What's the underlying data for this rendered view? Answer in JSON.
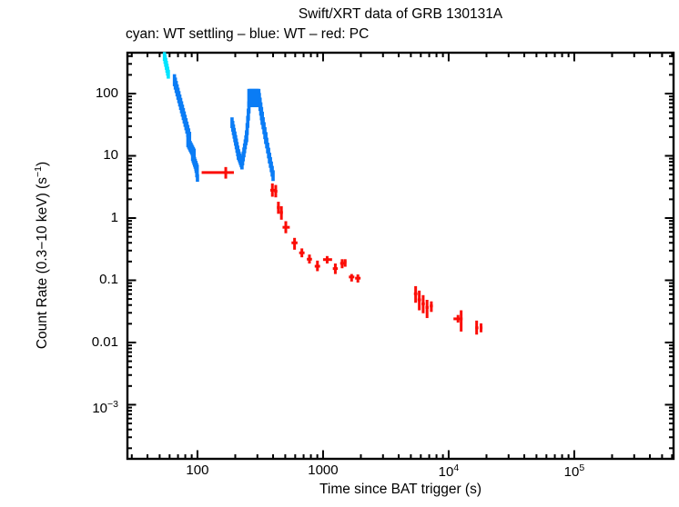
{
  "colors": {
    "wt_settling": "#00e5ff",
    "wt": "#0a7cf5",
    "pc": "#fb0d06",
    "frame": "#000000",
    "background": "#ffffff"
  },
  "chart_data": {
    "type": "scatter",
    "title": "Swift/XRT data of GRB 130131A",
    "subtitle": "cyan: WT settling – blue: WT – red: PC",
    "xlabel": "Time since BAT trigger (s)",
    "ylabel": "Count Rate (0.3−10 keV) (s^{−1})",
    "xscale": "log",
    "yscale": "log",
    "xlim": [
      27.7,
      617000
    ],
    "ylim": [
      0.000135,
      454
    ],
    "grid": false,
    "legend_position": "subtitle-text",
    "x_major_ticks": [
      {
        "v": 100,
        "label": "100"
      },
      {
        "v": 1000,
        "label": "1000"
      },
      {
        "v": 10000,
        "label": "10^{4}"
      },
      {
        "v": 100000,
        "label": "10^{5}"
      }
    ],
    "y_major_ticks": [
      {
        "v": 100,
        "label": "100"
      },
      {
        "v": 10,
        "label": "10"
      },
      {
        "v": 1,
        "label": "1"
      },
      {
        "v": 0.1,
        "label": "0.1"
      },
      {
        "v": 0.01,
        "label": "0.01"
      },
      {
        "v": 0.001,
        "label": "10^{−3}"
      }
    ],
    "series": [
      {
        "name": "WT settling",
        "color_key": "wt_settling",
        "style": "dense-errorbar-trail",
        "segments": [
          [
            54.6,
            395,
            58.6,
            205,
            7,
            1.18
          ]
        ]
      },
      {
        "name": "WT",
        "color_key": "wt",
        "style": "dense-errorbar-trail",
        "segments": [
          [
            65.6,
            164,
            86.5,
            19.5,
            18,
            1.25
          ],
          [
            84,
            16.8,
            94,
            10.7,
            9,
            1.22
          ],
          [
            91.5,
            9.9,
            99.5,
            6.0,
            8,
            1.2
          ],
          [
            97.7,
            6.1,
            100,
            4.4,
            3,
            1.15
          ],
          [
            188.5,
            34,
            212,
            10.5,
            10,
            1.22
          ],
          [
            212,
            10.5,
            226,
            7.26,
            6,
            1.2
          ],
          [
            226,
            7.26,
            246,
            20.6,
            8,
            1.2
          ],
          [
            246,
            20.6,
            257,
            60,
            5,
            1.25
          ],
          [
            257,
            85,
            308,
            85,
            10,
            1.4
          ],
          [
            311,
            80,
            328,
            40,
            5,
            1.28
          ],
          [
            328,
            40,
            350,
            19.3,
            5,
            1.25
          ],
          [
            350,
            19.3,
            375,
            9.2,
            5,
            1.22
          ],
          [
            375,
            9.2,
            400,
            4.8,
            5,
            1.22
          ]
        ]
      },
      {
        "name": "PC",
        "color_key": "pc",
        "style": "errorbar-points",
        "points": [
          [
            168,
            108,
            195,
            5.4,
            4.3,
            6.6
          ],
          [
            395,
            380,
            411,
            2.8,
            2.2,
            3.6
          ],
          [
            420,
            408,
            433,
            2.7,
            2.15,
            3.4
          ],
          [
            441,
            429,
            453,
            1.48,
            1.17,
            1.83
          ],
          [
            466,
            453,
            479,
            1.23,
            0.94,
            1.55
          ],
          [
            505,
            476,
            543,
            0.71,
            0.57,
            0.89
          ],
          [
            593,
            561,
            626,
            0.4,
            0.31,
            0.48
          ],
          [
            678,
            645,
            712,
            0.276,
            0.234,
            0.325
          ],
          [
            779,
            743,
            816,
            0.218,
            0.186,
            0.259
          ],
          [
            902,
            858,
            947,
            0.168,
            0.14,
            0.207
          ],
          [
            1078,
            1000,
            1180,
            0.215,
            0.186,
            0.245
          ],
          [
            1252,
            1196,
            1310,
            0.154,
            0.126,
            0.186
          ],
          [
            1419,
            1368,
            1472,
            0.187,
            0.156,
            0.218
          ],
          [
            1500,
            1465,
            1536,
            0.197,
            0.165,
            0.218
          ],
          [
            1688,
            1605,
            1775,
            0.113,
            0.0955,
            0.126
          ],
          [
            1893,
            1800,
            1990,
            0.108,
            0.092,
            0.124
          ],
          [
            5458,
            5290,
            5640,
            0.0607,
            0.0435,
            0.0805
          ],
          [
            5835,
            5660,
            6020,
            0.0485,
            0.0329,
            0.0682
          ],
          [
            6266,
            6080,
            6460,
            0.0419,
            0.0295,
            0.0577
          ],
          [
            6730,
            6540,
            6930,
            0.0366,
            0.0247,
            0.0485
          ],
          [
            7278,
            7070,
            7490,
            0.0386,
            0.031,
            0.0458
          ],
          [
            11870,
            10920,
            12900,
            0.024,
            0.0209,
            0.0277
          ],
          [
            12570,
            12350,
            12800,
            0.0233,
            0.015,
            0.0329
          ],
          [
            16700,
            16300,
            17250,
            0.0172,
            0.0134,
            0.0225
          ],
          [
            18100,
            17700,
            18600,
            0.0172,
            0.0146,
            0.0203
          ]
        ]
      }
    ]
  }
}
